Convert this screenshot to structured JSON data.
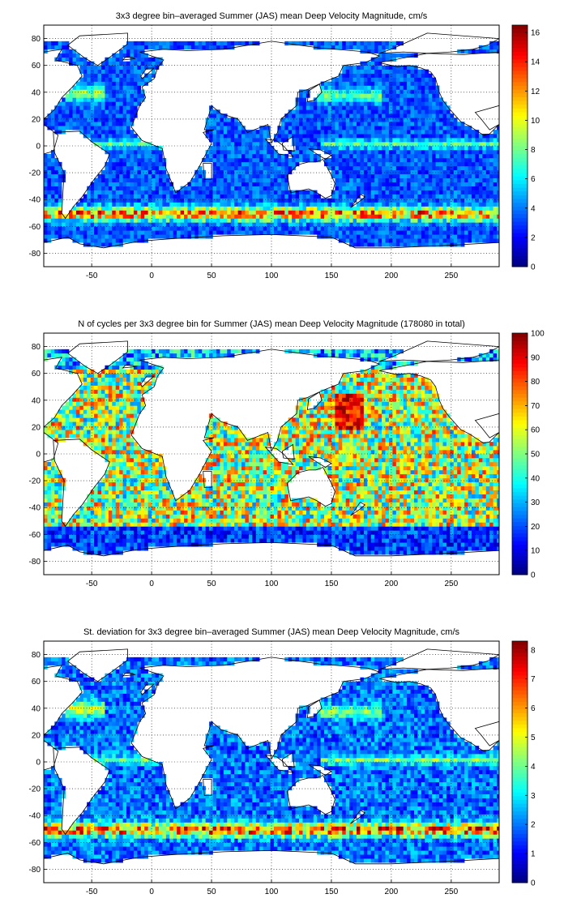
{
  "chart_data": [
    {
      "type": "heatmap",
      "title": "3x3 degree bin–averaged Summer (JAS) mean Deep Velocity Magnitude, cm/s",
      "xlim": [
        -90,
        290
      ],
      "ylim": [
        -90,
        90
      ],
      "xticks": [
        -50,
        0,
        50,
        100,
        150,
        200,
        250
      ],
      "yticks": [
        80,
        60,
        40,
        20,
        0,
        -20,
        -40,
        -60,
        -80
      ],
      "colorbar": {
        "min": 0,
        "max": 16.5,
        "ticks": [
          0,
          2,
          4,
          6,
          8,
          10,
          12,
          14,
          16
        ],
        "colormap": "jet"
      },
      "grid": true,
      "field": "velocity",
      "bin_size_deg": 3
    },
    {
      "type": "heatmap",
      "title": "N of cycles per 3x3 degree bin for Summer (JAS) mean Deep Velocity Magnitude (178080 in total)",
      "xlim": [
        -90,
        290
      ],
      "ylim": [
        -90,
        90
      ],
      "xticks": [
        -50,
        0,
        50,
        100,
        150,
        200,
        250
      ],
      "yticks": [
        80,
        60,
        40,
        20,
        0,
        -20,
        -40,
        -60,
        -80
      ],
      "colorbar": {
        "min": 0,
        "max": 100,
        "ticks": [
          0,
          10,
          20,
          30,
          40,
          50,
          60,
          70,
          80,
          90,
          100
        ],
        "colormap": "jet"
      },
      "grid": true,
      "field": "count",
      "bin_size_deg": 3
    },
    {
      "type": "heatmap",
      "title": "St. deviation for 3x3 degree bin–averaged Summer (JAS) mean Deep Velocity Magnitude, cm/s",
      "xlim": [
        -90,
        290
      ],
      "ylim": [
        -90,
        90
      ],
      "xticks": [
        -50,
        0,
        50,
        100,
        150,
        200,
        250
      ],
      "yticks": [
        80,
        60,
        40,
        20,
        0,
        -20,
        -40,
        -60,
        -80
      ],
      "colorbar": {
        "min": 0,
        "max": 8.3,
        "ticks": [
          0,
          1,
          2,
          3,
          4,
          5,
          6,
          7,
          8
        ],
        "colormap": "jet"
      },
      "grid": true,
      "field": "stdev",
      "bin_size_deg": 3
    }
  ]
}
